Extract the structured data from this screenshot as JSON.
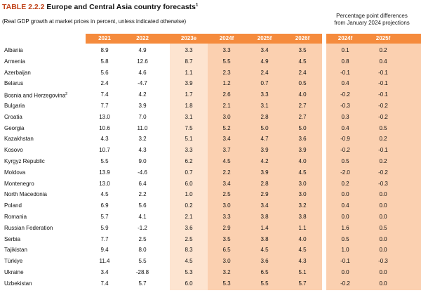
{
  "title": {
    "number": "TABLE 2.2.2",
    "text": "Europe and Central Asia country forecasts",
    "footnote_mark": "1"
  },
  "subtitle": "(Real GDP growth at market prices in percent, unless indicated otherwise)",
  "right_note": {
    "line1": "Percentage point differences",
    "line2": "from January 2024 projections"
  },
  "headers": [
    "2021",
    "2022",
    "2023e",
    "2024f",
    "2025f",
    "2026f"
  ],
  "diff_headers": [
    "2024f",
    "2025f"
  ],
  "rows": [
    {
      "country": "Albania",
      "sup": "",
      "values": [
        "8.9",
        "4.9",
        "3.3",
        "3.3",
        "3.4",
        "3.5"
      ],
      "diff": [
        "0.1",
        "0.2"
      ]
    },
    {
      "country": "Armenia",
      "sup": "",
      "values": [
        "5.8",
        "12.6",
        "8.7",
        "5.5",
        "4.9",
        "4.5"
      ],
      "diff": [
        "0.8",
        "0.4"
      ]
    },
    {
      "country": "Azerbaijan",
      "sup": "",
      "values": [
        "5.6",
        "4.6",
        "1.1",
        "2.3",
        "2.4",
        "2.4"
      ],
      "diff": [
        "-0.1",
        "-0.1"
      ]
    },
    {
      "country": "Belarus",
      "sup": "",
      "values": [
        "2.4",
        "-4.7",
        "3.9",
        "1.2",
        "0.7",
        "0.5"
      ],
      "diff": [
        "0.4",
        "-0.1"
      ]
    },
    {
      "country": "Bosnia and Herzegovina",
      "sup": "2",
      "values": [
        "7.4",
        "4.2",
        "1.7",
        "2.6",
        "3.3",
        "4.0"
      ],
      "diff": [
        "-0.2",
        "-0.1"
      ]
    },
    {
      "country": "Bulgaria",
      "sup": "",
      "values": [
        "7.7",
        "3.9",
        "1.8",
        "2.1",
        "3.1",
        "2.7"
      ],
      "diff": [
        "-0.3",
        "-0.2"
      ]
    },
    {
      "country": "Croatia",
      "sup": "",
      "values": [
        "13.0",
        "7.0",
        "3.1",
        "3.0",
        "2.8",
        "2.7"
      ],
      "diff": [
        "0.3",
        "-0.2"
      ]
    },
    {
      "country": "Georgia",
      "sup": "",
      "values": [
        "10.6",
        "11.0",
        "7.5",
        "5.2",
        "5.0",
        "5.0"
      ],
      "diff": [
        "0.4",
        "0.5"
      ]
    },
    {
      "country": "Kazakhstan",
      "sup": "",
      "values": [
        "4.3",
        "3.2",
        "5.1",
        "3.4",
        "4.7",
        "3.6"
      ],
      "diff": [
        "-0.9",
        "0.2"
      ]
    },
    {
      "country": "Kosovo",
      "sup": "",
      "values": [
        "10.7",
        "4.3",
        "3.3",
        "3.7",
        "3.9",
        "3.9"
      ],
      "diff": [
        "-0.2",
        "-0.1"
      ]
    },
    {
      "country": "Kyrgyz Republic",
      "sup": "",
      "values": [
        "5.5",
        "9.0",
        "6.2",
        "4.5",
        "4.2",
        "4.0"
      ],
      "diff": [
        "0.5",
        "0.2"
      ]
    },
    {
      "country": "Moldova",
      "sup": "",
      "values": [
        "13.9",
        "-4.6",
        "0.7",
        "2.2",
        "3.9",
        "4.5"
      ],
      "diff": [
        "-2.0",
        "-0.2"
      ]
    },
    {
      "country": "Montenegro",
      "sup": "",
      "values": [
        "13.0",
        "6.4",
        "6.0",
        "3.4",
        "2.8",
        "3.0"
      ],
      "diff": [
        "0.2",
        "-0.3"
      ]
    },
    {
      "country": "North Macedonia",
      "sup": "",
      "values": [
        "4.5",
        "2.2",
        "1.0",
        "2.5",
        "2.9",
        "3.0"
      ],
      "diff": [
        "0.0",
        "0.0"
      ]
    },
    {
      "country": "Poland",
      "sup": "",
      "values": [
        "6.9",
        "5.6",
        "0.2",
        "3.0",
        "3.4",
        "3.2"
      ],
      "diff": [
        "0.4",
        "0.0"
      ]
    },
    {
      "country": "Romania",
      "sup": "",
      "values": [
        "5.7",
        "4.1",
        "2.1",
        "3.3",
        "3.8",
        "3.8"
      ],
      "diff": [
        "0.0",
        "0.0"
      ]
    },
    {
      "country": "Russian Federation",
      "sup": "",
      "values": [
        "5.9",
        "-1.2",
        "3.6",
        "2.9",
        "1.4",
        "1.1"
      ],
      "diff": [
        "1.6",
        "0.5"
      ]
    },
    {
      "country": "Serbia",
      "sup": "",
      "values": [
        "7.7",
        "2.5",
        "2.5",
        "3.5",
        "3.8",
        "4.0"
      ],
      "diff": [
        "0.5",
        "0.0"
      ]
    },
    {
      "country": "Tajikistan",
      "sup": "",
      "values": [
        "9.4",
        "8.0",
        "8.3",
        "6.5",
        "4.5",
        "4.5"
      ],
      "diff": [
        "1.0",
        "0.0"
      ]
    },
    {
      "country": "Türkiye",
      "sup": "",
      "values": [
        "11.4",
        "5.5",
        "4.5",
        "3.0",
        "3.6",
        "4.3"
      ],
      "diff": [
        "-0.1",
        "-0.3"
      ]
    },
    {
      "country": "Ukraine",
      "sup": "",
      "values": [
        "3.4",
        "-28.8",
        "5.3",
        "3.2",
        "6.5",
        "5.1"
      ],
      "diff": [
        "0.0",
        "0.0"
      ]
    },
    {
      "country": "Uzbekistan",
      "sup": "",
      "values": [
        "7.4",
        "5.7",
        "6.0",
        "5.3",
        "5.5",
        "5.7"
      ],
      "diff": [
        "-0.2",
        "0.0"
      ]
    }
  ],
  "colors": {
    "header": "#f58b3d",
    "estimate_bg": "#fde4d0",
    "forecast_bg": "#fbd0b0",
    "title_number": "#c0431a"
  }
}
